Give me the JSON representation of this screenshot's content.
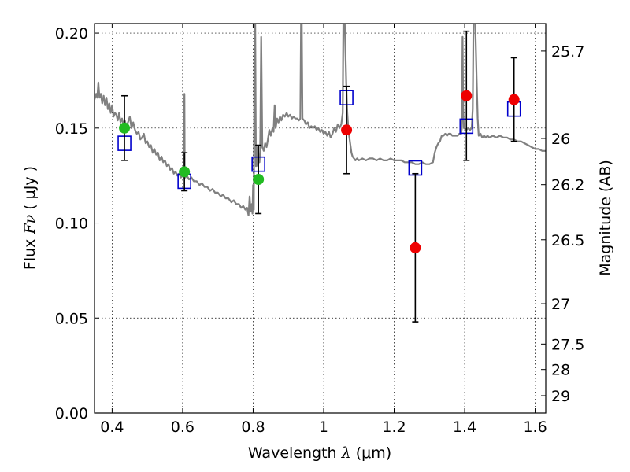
{
  "chart_data": {
    "type": "scatter",
    "xlabel": {
      "prefix": "Wavelength ",
      "symbol": "λ",
      "unit": " (μm)"
    },
    "ylabel": {
      "prefix": "Flux ",
      "symbol": "Fν",
      "unit": " ( μJy )"
    },
    "y2label": "Magnitude (AB)",
    "xlim": [
      0.35,
      1.63
    ],
    "ylim": [
      0.0,
      0.205
    ],
    "grid": true,
    "x_ticks": [
      {
        "value": 0.4,
        "label": "0.4"
      },
      {
        "value": 0.6,
        "label": "0.6"
      },
      {
        "value": 0.8,
        "label": "0.8"
      },
      {
        "value": 1.0,
        "label": "1"
      },
      {
        "value": 1.2,
        "label": "1.2"
      },
      {
        "value": 1.4,
        "label": "1.4"
      },
      {
        "value": 1.6,
        "label": "1.6"
      }
    ],
    "y_ticks": [
      {
        "value": 0.0,
        "label": "0.00"
      },
      {
        "value": 0.05,
        "label": "0.05"
      },
      {
        "value": 0.1,
        "label": "0.10"
      },
      {
        "value": 0.15,
        "label": "0.15"
      },
      {
        "value": 0.2,
        "label": "0.20"
      }
    ],
    "y2_ticks": [
      {
        "mag": 25.7,
        "label": "25.7"
      },
      {
        "mag": 26,
        "label": "26"
      },
      {
        "mag": 26.2,
        "label": "26.2"
      },
      {
        "mag": 26.5,
        "label": "26.5"
      },
      {
        "mag": 27,
        "label": "27"
      },
      {
        "mag": 27.5,
        "label": "27.5"
      },
      {
        "mag": 28,
        "label": "28"
      },
      {
        "mag": 29,
        "label": "29"
      }
    ],
    "series": [
      {
        "kind": "line",
        "color": "#808080",
        "points": [
          [
            0.35,
            0.165
          ],
          [
            0.355,
            0.168
          ],
          [
            0.358,
            0.166
          ],
          [
            0.361,
            0.174
          ],
          [
            0.364,
            0.166
          ],
          [
            0.368,
            0.168
          ],
          [
            0.372,
            0.163
          ],
          [
            0.376,
            0.167
          ],
          [
            0.38,
            0.162
          ],
          [
            0.384,
            0.166
          ],
          [
            0.388,
            0.16
          ],
          [
            0.392,
            0.163
          ],
          [
            0.396,
            0.158
          ],
          [
            0.4,
            0.162
          ],
          [
            0.404,
            0.156
          ],
          [
            0.408,
            0.158
          ],
          [
            0.412,
            0.157
          ],
          [
            0.416,
            0.154
          ],
          [
            0.42,
            0.158
          ],
          [
            0.424,
            0.153
          ],
          [
            0.428,
            0.155
          ],
          [
            0.432,
            0.152
          ],
          [
            0.436,
            0.154
          ],
          [
            0.44,
            0.151
          ],
          [
            0.445,
            0.153
          ],
          [
            0.45,
            0.156
          ],
          [
            0.455,
            0.15
          ],
          [
            0.46,
            0.153
          ],
          [
            0.465,
            0.149
          ],
          [
            0.47,
            0.147
          ],
          [
            0.475,
            0.148
          ],
          [
            0.48,
            0.144
          ],
          [
            0.485,
            0.145
          ],
          [
            0.49,
            0.147
          ],
          [
            0.495,
            0.142
          ],
          [
            0.5,
            0.143
          ],
          [
            0.505,
            0.14
          ],
          [
            0.51,
            0.141
          ],
          [
            0.515,
            0.137
          ],
          [
            0.52,
            0.139
          ],
          [
            0.525,
            0.136
          ],
          [
            0.53,
            0.137
          ],
          [
            0.535,
            0.133
          ],
          [
            0.54,
            0.135
          ],
          [
            0.545,
            0.132
          ],
          [
            0.55,
            0.133
          ],
          [
            0.555,
            0.13
          ],
          [
            0.56,
            0.131
          ],
          [
            0.565,
            0.128
          ],
          [
            0.57,
            0.129
          ],
          [
            0.575,
            0.126
          ],
          [
            0.58,
            0.127
          ],
          [
            0.585,
            0.125
          ],
          [
            0.59,
            0.126
          ],
          [
            0.595,
            0.124
          ],
          [
            0.6,
            0.125
          ],
          [
            0.603,
            0.124
          ],
          [
            0.605,
            0.168
          ],
          [
            0.606,
            0.125
          ],
          [
            0.608,
            0.124
          ],
          [
            0.612,
            0.125
          ],
          [
            0.618,
            0.123
          ],
          [
            0.625,
            0.124
          ],
          [
            0.632,
            0.122
          ],
          [
            0.64,
            0.122
          ],
          [
            0.648,
            0.12
          ],
          [
            0.655,
            0.121
          ],
          [
            0.662,
            0.119
          ],
          [
            0.67,
            0.119
          ],
          [
            0.678,
            0.117
          ],
          [
            0.685,
            0.118
          ],
          [
            0.692,
            0.116
          ],
          [
            0.7,
            0.116
          ],
          [
            0.708,
            0.114
          ],
          [
            0.715,
            0.115
          ],
          [
            0.722,
            0.113
          ],
          [
            0.73,
            0.113
          ],
          [
            0.738,
            0.111
          ],
          [
            0.745,
            0.112
          ],
          [
            0.752,
            0.11
          ],
          [
            0.76,
            0.11
          ],
          [
            0.766,
            0.108
          ],
          [
            0.772,
            0.109
          ],
          [
            0.778,
            0.107
          ],
          [
            0.783,
            0.108
          ],
          [
            0.787,
            0.104
          ],
          [
            0.79,
            0.114
          ],
          [
            0.793,
            0.106
          ],
          [
            0.796,
            0.11
          ],
          [
            0.798,
            0.105
          ],
          [
            0.8,
            0.12
          ],
          [
            0.802,
            0.107
          ],
          [
            0.804,
            0.205
          ],
          [
            0.806,
            0.205
          ],
          [
            0.808,
            0.13
          ],
          [
            0.81,
            0.14
          ],
          [
            0.813,
            0.13
          ],
          [
            0.816,
            0.134
          ],
          [
            0.818,
            0.132
          ],
          [
            0.82,
            0.138
          ],
          [
            0.823,
            0.198
          ],
          [
            0.826,
            0.14
          ],
          [
            0.83,
            0.138
          ],
          [
            0.834,
            0.142
          ],
          [
            0.838,
            0.14
          ],
          [
            0.842,
            0.144
          ],
          [
            0.846,
            0.149
          ],
          [
            0.85,
            0.146
          ],
          [
            0.855,
            0.15
          ],
          [
            0.858,
            0.148
          ],
          [
            0.861,
            0.162
          ],
          [
            0.864,
            0.15
          ],
          [
            0.868,
            0.155
          ],
          [
            0.872,
            0.153
          ],
          [
            0.876,
            0.156
          ],
          [
            0.88,
            0.154
          ],
          [
            0.885,
            0.157
          ],
          [
            0.89,
            0.156
          ],
          [
            0.895,
            0.158
          ],
          [
            0.9,
            0.156
          ],
          [
            0.905,
            0.157
          ],
          [
            0.91,
            0.155
          ],
          [
            0.915,
            0.156
          ],
          [
            0.92,
            0.155
          ],
          [
            0.925,
            0.155
          ],
          [
            0.93,
            0.154
          ],
          [
            0.934,
            0.155
          ],
          [
            0.936,
            0.205
          ],
          [
            0.938,
            0.205
          ],
          [
            0.94,
            0.155
          ],
          [
            0.945,
            0.154
          ],
          [
            0.95,
            0.152
          ],
          [
            0.955,
            0.153
          ],
          [
            0.96,
            0.15
          ],
          [
            0.965,
            0.151
          ],
          [
            0.97,
            0.15
          ],
          [
            0.975,
            0.151
          ],
          [
            0.98,
            0.149
          ],
          [
            0.985,
            0.15
          ],
          [
            0.99,
            0.148
          ],
          [
            0.995,
            0.149
          ],
          [
            1.0,
            0.147
          ],
          [
            1.005,
            0.148
          ],
          [
            1.01,
            0.146
          ],
          [
            1.015,
            0.148
          ],
          [
            1.02,
            0.145
          ],
          [
            1.025,
            0.147
          ],
          [
            1.03,
            0.15
          ],
          [
            1.035,
            0.148
          ],
          [
            1.04,
            0.152
          ],
          [
            1.045,
            0.15
          ],
          [
            1.05,
            0.152
          ],
          [
            1.054,
            0.158
          ],
          [
            1.056,
            0.205
          ],
          [
            1.06,
            0.205
          ],
          [
            1.064,
            0.175
          ],
          [
            1.067,
            0.158
          ],
          [
            1.07,
            0.15
          ],
          [
            1.073,
            0.145
          ],
          [
            1.076,
            0.141
          ],
          [
            1.079,
            0.137
          ],
          [
            1.082,
            0.135
          ],
          [
            1.086,
            0.134
          ],
          [
            1.09,
            0.133
          ],
          [
            1.095,
            0.134
          ],
          [
            1.1,
            0.133
          ],
          [
            1.11,
            0.134
          ],
          [
            1.12,
            0.133
          ],
          [
            1.13,
            0.134
          ],
          [
            1.14,
            0.134
          ],
          [
            1.15,
            0.133
          ],
          [
            1.16,
            0.134
          ],
          [
            1.17,
            0.133
          ],
          [
            1.18,
            0.133
          ],
          [
            1.19,
            0.134
          ],
          [
            1.2,
            0.133
          ],
          [
            1.21,
            0.133
          ],
          [
            1.22,
            0.133
          ],
          [
            1.23,
            0.132
          ],
          [
            1.24,
            0.132
          ],
          [
            1.25,
            0.132
          ],
          [
            1.26,
            0.131
          ],
          [
            1.27,
            0.131
          ],
          [
            1.28,
            0.132
          ],
          [
            1.29,
            0.131
          ],
          [
            1.3,
            0.131
          ],
          [
            1.31,
            0.132
          ],
          [
            1.315,
            0.137
          ],
          [
            1.32,
            0.14
          ],
          [
            1.325,
            0.142
          ],
          [
            1.33,
            0.143
          ],
          [
            1.335,
            0.146
          ],
          [
            1.34,
            0.146
          ],
          [
            1.345,
            0.147
          ],
          [
            1.35,
            0.146
          ],
          [
            1.355,
            0.147
          ],
          [
            1.36,
            0.147
          ],
          [
            1.365,
            0.146
          ],
          [
            1.37,
            0.146
          ],
          [
            1.375,
            0.146
          ],
          [
            1.38,
            0.146
          ],
          [
            1.385,
            0.147
          ],
          [
            1.39,
            0.147
          ],
          [
            1.392,
            0.15
          ],
          [
            1.394,
            0.198
          ],
          [
            1.396,
            0.16
          ],
          [
            1.398,
            0.15
          ],
          [
            1.405,
            0.149
          ],
          [
            1.41,
            0.15
          ],
          [
            1.415,
            0.149
          ],
          [
            1.42,
            0.15
          ],
          [
            1.423,
            0.16
          ],
          [
            1.425,
            0.205
          ],
          [
            1.43,
            0.205
          ],
          [
            1.434,
            0.175
          ],
          [
            1.437,
            0.155
          ],
          [
            1.44,
            0.146
          ],
          [
            1.445,
            0.147
          ],
          [
            1.45,
            0.145
          ],
          [
            1.455,
            0.146
          ],
          [
            1.46,
            0.145
          ],
          [
            1.465,
            0.146
          ],
          [
            1.47,
            0.145
          ],
          [
            1.48,
            0.146
          ],
          [
            1.49,
            0.145
          ],
          [
            1.5,
            0.146
          ],
          [
            1.51,
            0.145
          ],
          [
            1.52,
            0.145
          ],
          [
            1.53,
            0.144
          ],
          [
            1.54,
            0.144
          ],
          [
            1.55,
            0.143
          ],
          [
            1.56,
            0.143
          ],
          [
            1.57,
            0.142
          ],
          [
            1.58,
            0.141
          ],
          [
            1.59,
            0.14
          ],
          [
            1.6,
            0.139
          ],
          [
            1.61,
            0.139
          ],
          [
            1.62,
            0.138
          ],
          [
            1.63,
            0.138
          ]
        ]
      },
      {
        "kind": "box",
        "color": "#0000cc",
        "points": [
          {
            "x": 0.435,
            "y": 0.142
          },
          {
            "x": 0.605,
            "y": 0.122
          },
          {
            "x": 0.815,
            "y": 0.131
          },
          {
            "x": 1.065,
            "y": 0.166
          },
          {
            "x": 1.26,
            "y": 0.129
          },
          {
            "x": 1.405,
            "y": 0.151
          },
          {
            "x": 1.54,
            "y": 0.16
          }
        ]
      },
      {
        "kind": "errorbar",
        "color": "#000000",
        "points": [
          {
            "x": 0.435,
            "y": 0.15,
            "err": 0.017
          },
          {
            "x": 0.605,
            "y": 0.127,
            "err": 0.01
          },
          {
            "x": 0.815,
            "y": 0.123,
            "err": 0.018
          },
          {
            "x": 1.065,
            "y": 0.149,
            "err": 0.023
          },
          {
            "x": 1.26,
            "y": 0.087,
            "err": 0.039
          },
          {
            "x": 1.405,
            "y": 0.167,
            "err": 0.034
          },
          {
            "x": 1.54,
            "y": 0.165,
            "err": 0.022
          }
        ]
      },
      {
        "kind": "dot",
        "color": "#22bb22",
        "points": [
          {
            "x": 0.435,
            "y": 0.15
          },
          {
            "x": 0.605,
            "y": 0.127
          },
          {
            "x": 0.815,
            "y": 0.123
          }
        ]
      },
      {
        "kind": "dot",
        "color": "#ee0000",
        "points": [
          {
            "x": 1.065,
            "y": 0.149
          },
          {
            "x": 1.26,
            "y": 0.087
          },
          {
            "x": 1.405,
            "y": 0.167
          },
          {
            "x": 1.54,
            "y": 0.165
          }
        ]
      }
    ]
  }
}
